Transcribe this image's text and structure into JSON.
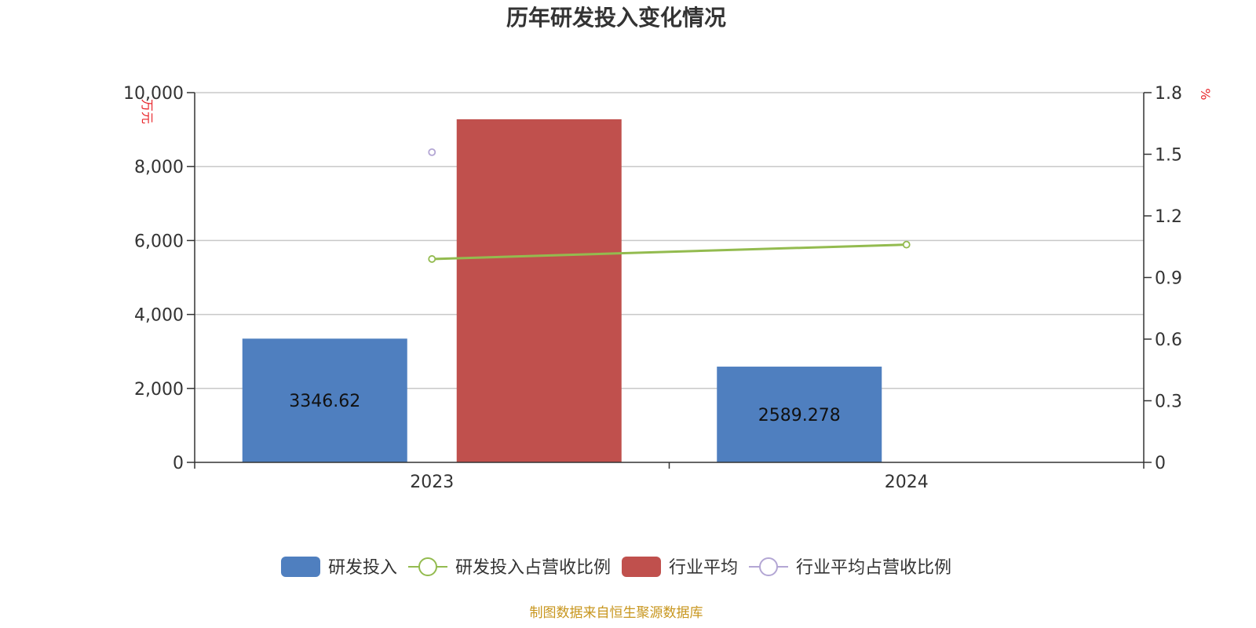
{
  "colors": {
    "rd_investment": "#4f7fbf",
    "rd_ratio": "#93bb4f",
    "industry_avg": "#c0504d",
    "industry_ratio": "#b3a6d4",
    "unit_text": "#e8262b",
    "source_text": "#c8961e",
    "grid": "#c8c8c8",
    "axis": "#333333"
  },
  "source": "制图数据来自恒生聚源数据库",
  "chart_data": {
    "type": "bar",
    "title": "历年研发投入变化情况",
    "categories": [
      "2023",
      "2024"
    ],
    "y_left": {
      "unit": "万元",
      "range": [
        0,
        10000
      ],
      "ticks": [
        "0",
        "2,000",
        "4,000",
        "6,000",
        "8,000",
        "10,000"
      ],
      "tick_values": [
        0,
        2000,
        4000,
        6000,
        8000,
        10000
      ]
    },
    "y_right": {
      "unit": "%",
      "range": [
        0,
        1.8
      ],
      "ticks": [
        "0",
        "0.3",
        "0.6",
        "0.9",
        "1.2",
        "1.5",
        "1.8"
      ],
      "tick_values": [
        0,
        0.3,
        0.6,
        0.9,
        1.2,
        1.5,
        1.8
      ]
    },
    "grid": true,
    "legend_position": "bottom",
    "series": [
      {
        "name": "研发投入",
        "type": "bar",
        "axis": "left",
        "color_key": "rd_investment",
        "values": [
          3346.62,
          2589.278
        ],
        "labels": [
          "3346.62",
          "2589.278"
        ]
      },
      {
        "name": "研发投入占营收比例",
        "type": "line",
        "axis": "right",
        "color_key": "rd_ratio",
        "values": [
          0.99,
          1.06
        ]
      },
      {
        "name": "行业平均",
        "type": "bar",
        "axis": "left",
        "color_key": "industry_avg",
        "values": [
          9280,
          null
        ]
      },
      {
        "name": "行业平均占营收比例",
        "type": "line",
        "axis": "right",
        "color_key": "industry_ratio",
        "values": [
          1.51,
          null
        ]
      }
    ]
  }
}
